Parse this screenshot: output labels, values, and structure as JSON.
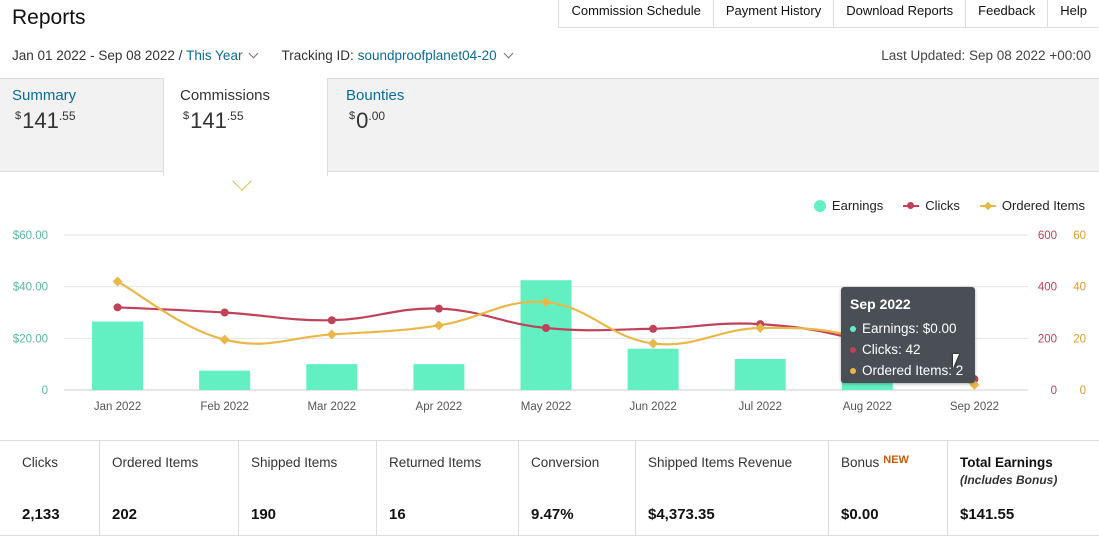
{
  "header": {
    "title": "Reports",
    "nav": [
      "Commission Schedule",
      "Payment History",
      "Download Reports",
      "Feedback",
      "Help"
    ]
  },
  "filters": {
    "date_range": "Jan 01 2022 - Sep 08 2022 /",
    "period": "This Year",
    "tracking_label": "Tracking ID:",
    "tracking_id": "soundproofplanet04-20",
    "last_updated": "Last Updated: Sep 08 2022 +00:00"
  },
  "tabs": {
    "summary": {
      "label": "Summary",
      "currency": "$",
      "whole": "141",
      "cents": ".55"
    },
    "commissions": {
      "label": "Commissions",
      "currency": "$",
      "whole": "141",
      "cents": ".55"
    },
    "bounties": {
      "label": "Bounties",
      "currency": "$",
      "whole": "0",
      "cents": ".00"
    }
  },
  "legend": {
    "earnings": "Earnings",
    "clicks": "Clicks",
    "ordered": "Ordered Items"
  },
  "colors": {
    "earnings": "#62f0c2",
    "clicks": "#c0415a",
    "ordered": "#eab84a",
    "link": "#0b6c94",
    "new_badge": "#c65c0b"
  },
  "chart_data": {
    "type": "bar",
    "categories": [
      "Jan 2022",
      "Feb 2022",
      "Mar 2022",
      "Apr 2022",
      "May 2022",
      "Jun 2022",
      "Jul 2022",
      "Aug 2022",
      "Sep 2022"
    ],
    "series": [
      {
        "name": "Earnings",
        "type": "bar",
        "axis": "left",
        "values": [
          26.5,
          7.5,
          10,
          10,
          42.5,
          16,
          12,
          14,
          0
        ]
      },
      {
        "name": "Clicks",
        "type": "line",
        "axis": "right1",
        "values": [
          320,
          300,
          270,
          315,
          240,
          237,
          255,
          185,
          42
        ]
      },
      {
        "name": "Ordered Items",
        "type": "line",
        "axis": "right2",
        "values": [
          42,
          19.5,
          21.5,
          25,
          34,
          18,
          24,
          19.5,
          2
        ]
      }
    ],
    "axes": {
      "left": {
        "ticks": [
          "$60.00",
          "$40.00",
          "$20.00",
          "0"
        ],
        "range": [
          0,
          60
        ],
        "color": "#5bb8a3"
      },
      "right1": {
        "ticks": [
          "600",
          "400",
          "200",
          "0"
        ],
        "range": [
          0,
          600
        ],
        "color": "#c0415a"
      },
      "right2": {
        "ticks": [
          "60",
          "40",
          "20",
          "0"
        ],
        "range": [
          0,
          60
        ],
        "color": "#d99d2e"
      }
    },
    "grid": true,
    "legend_position": "top-right"
  },
  "tooltip": {
    "title": "Sep 2022",
    "earnings": "Earnings: $0.00",
    "clicks": "Clicks: 42",
    "ordered": "Ordered Items: 2"
  },
  "metrics": [
    {
      "label": "Clicks",
      "value": "2,133"
    },
    {
      "label": "Ordered Items",
      "value": "202"
    },
    {
      "label": "Shipped Items",
      "value": "190"
    },
    {
      "label": "Returned Items",
      "value": "16"
    },
    {
      "label": "Conversion",
      "value": "9.47%"
    },
    {
      "label": "Shipped Items Revenue",
      "value": "$4,373.35"
    },
    {
      "label": "Bonus",
      "badge": "NEW",
      "value": "$0.00"
    },
    {
      "label": "Total Earnings",
      "sub": "(Includes Bonus)",
      "value": "$141.55"
    }
  ]
}
